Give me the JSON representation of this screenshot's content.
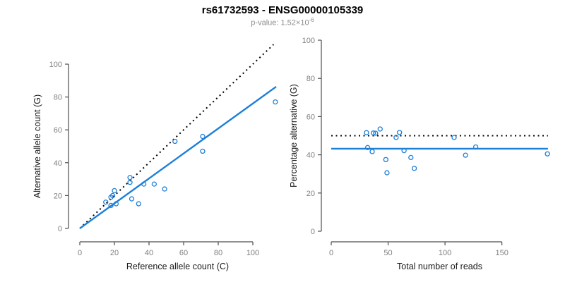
{
  "header": {
    "title": "rs61732593 - ENSG00000105339",
    "pvalue": {
      "prefix": "p-value: ",
      "base": "1.52×10",
      "exponent": "-6"
    }
  },
  "colors": {
    "accent_blue": "#1E7FD8",
    "dotted_line": "#000000",
    "axis_line": "#4d4d4d",
    "tick_label": "#7f7f7f",
    "axis_title": "#1a1a1a",
    "subtitle_gray": "#8c8c8c",
    "background": "#ffffff"
  },
  "chart_data": [
    {
      "name": "allele-counts",
      "type": "scatter",
      "xlabel": "Reference allele count (C)",
      "ylabel": "Alternative allele count (G)",
      "x_ticks": [
        0,
        20,
        40,
        60,
        80,
        100
      ],
      "y_ticks": [
        0,
        20,
        40,
        60,
        80,
        100
      ],
      "xlim": [
        0,
        113
      ],
      "ylim": [
        0,
        112
      ],
      "grid": false,
      "points": [
        [
          15,
          16
        ],
        [
          18,
          14
        ],
        [
          18,
          19
        ],
        [
          19,
          20
        ],
        [
          20,
          23
        ],
        [
          21,
          15
        ],
        [
          29,
          28
        ],
        [
          29,
          31
        ],
        [
          30,
          18
        ],
        [
          34,
          15
        ],
        [
          37,
          27
        ],
        [
          43,
          27
        ],
        [
          49,
          24
        ],
        [
          55,
          53
        ],
        [
          71,
          47
        ],
        [
          71,
          56
        ],
        [
          113,
          77
        ]
      ],
      "lines": [
        {
          "name": "identity-line",
          "style": "dotted",
          "color": "#000000",
          "x1": 0,
          "y1": 0,
          "x2": 112,
          "y2": 112
        },
        {
          "name": "fit-line",
          "style": "solid",
          "color": "#1E7FD8",
          "slope": 0.76,
          "x1": 0,
          "y1": 0,
          "x2": 113.5,
          "y2": 86.3
        }
      ]
    },
    {
      "name": "percentage-vs-depth",
      "type": "scatter",
      "xlabel": "Total number of reads",
      "ylabel": "Percentage alternative (G)",
      "x_ticks": [
        0,
        50,
        100,
        150
      ],
      "y_ticks": [
        0,
        20,
        40,
        60,
        80,
        100
      ],
      "xlim": [
        0,
        190.5
      ],
      "ylim": [
        0,
        100
      ],
      "grid": false,
      "points": [
        [
          31,
          51.6
        ],
        [
          32,
          43.8
        ],
        [
          36,
          41.7
        ],
        [
          37,
          51.4
        ],
        [
          39,
          51.3
        ],
        [
          43,
          53.5
        ],
        [
          48,
          37.5
        ],
        [
          49,
          30.6
        ],
        [
          57,
          49.1
        ],
        [
          60,
          51.7
        ],
        [
          64,
          42.2
        ],
        [
          70,
          38.6
        ],
        [
          73,
          32.9
        ],
        [
          108,
          49.1
        ],
        [
          118,
          39.8
        ],
        [
          127,
          44.1
        ],
        [
          190,
          40.5
        ]
      ],
      "lines": [
        {
          "name": "null-50pct-line",
          "style": "dotted",
          "color": "#000000",
          "x1": 0,
          "y1": 50,
          "x2": 190.5,
          "y2": 50
        },
        {
          "name": "fit-mean-line",
          "style": "solid",
          "color": "#1E7FD8",
          "x1": 0,
          "y1": 43.2,
          "x2": 190.5,
          "y2": 43.2
        }
      ]
    }
  ]
}
